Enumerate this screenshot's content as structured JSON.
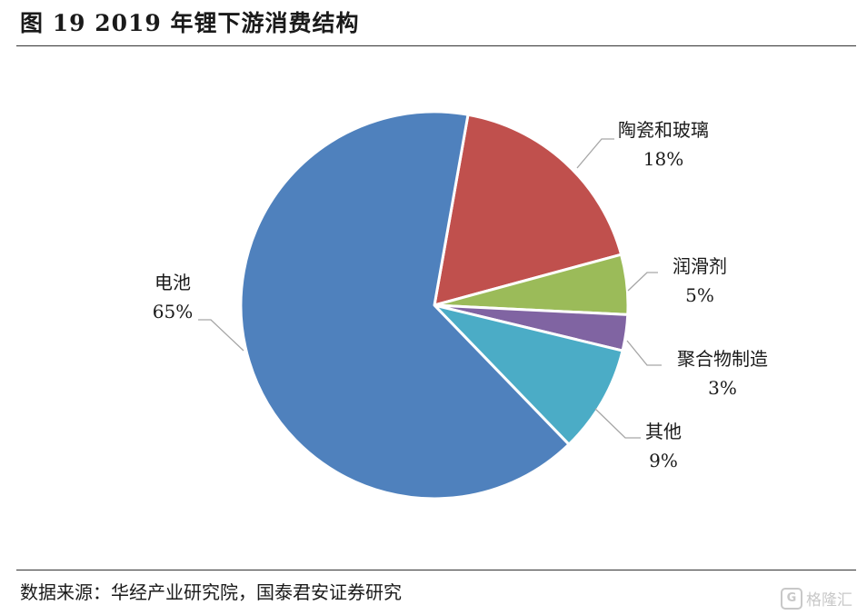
{
  "header": {
    "title": "图 19 2019 年锂下游消费结构"
  },
  "footer": {
    "source": "数据来源：华经产业研究院，国泰君安证券研究",
    "watermark": "格隆汇"
  },
  "chart_data": {
    "type": "pie",
    "title": "图 19 2019 年锂下游消费结构",
    "slices": [
      {
        "label": "陶瓷和玻璃",
        "value": 18,
        "value_label": "18%",
        "color": "#C0504D"
      },
      {
        "label": "润滑剂",
        "value": 5,
        "value_label": "5%",
        "color": "#9BBB59"
      },
      {
        "label": "聚合物制造",
        "value": 3,
        "value_label": "3%",
        "color": "#8064A2"
      },
      {
        "label": "其他",
        "value": 9,
        "value_label": "9%",
        "color": "#4BACC6"
      },
      {
        "label": "电池",
        "value": 65,
        "value_label": "65%",
        "color": "#4F81BD"
      }
    ],
    "start_angle_deg": 10,
    "direction": "clockwise",
    "legend": "none"
  }
}
